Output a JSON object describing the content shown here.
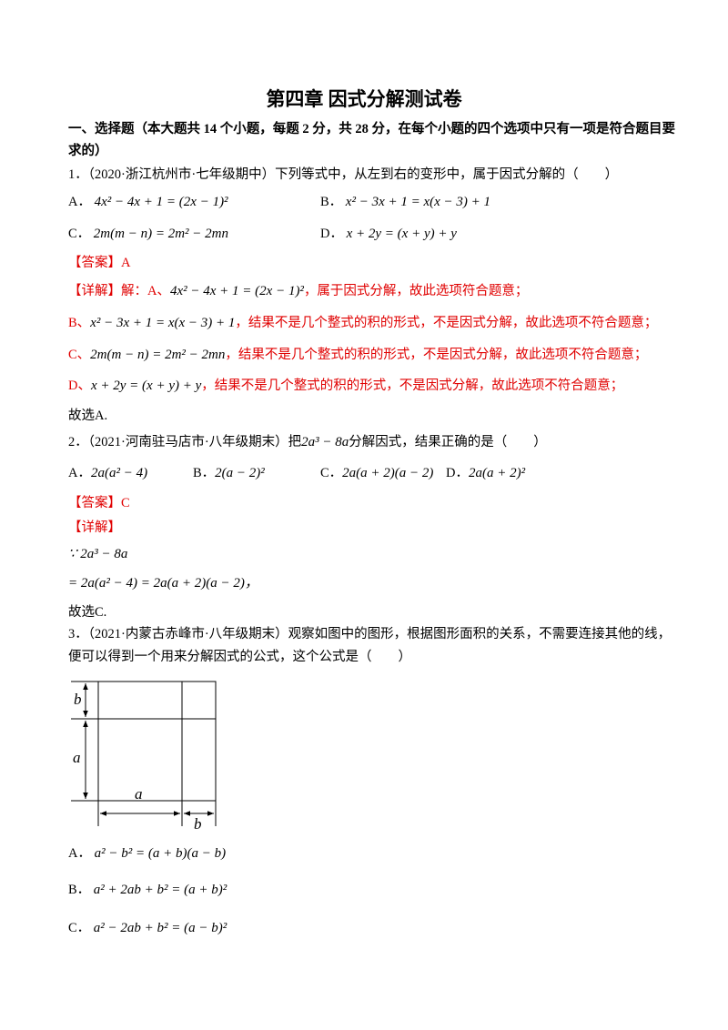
{
  "title": "第四章  因式分解测试卷",
  "section": {
    "line1": "一、选择题（本大题共 14 个小题，每题 2 分，共 28 分，在每个小题的四个选项中只有一项是符合题目要",
    "line2": "求的）"
  },
  "q1": {
    "stem": "1．（2020·浙江杭州市·七年级期中）下列等式中，从左到右的变形中，属于因式分解的（　　）",
    "options": [
      {
        "label": "A．",
        "math": "4x² − 4x + 1 = (2x − 1)²"
      },
      {
        "label": "B．",
        "math": "x² − 3x + 1 = x(x − 3) + 1"
      },
      {
        "label": "C．",
        "math": "2m(m − n) = 2m² − 2mn"
      },
      {
        "label": "D．",
        "math": "x + 2y = (x + y) + y"
      }
    ],
    "answer": "【答案】A",
    "detail": [
      {
        "label": "【详解】解：A、",
        "math": "4x² − 4x + 1 = (2x − 1)²",
        "text": "，属于因式分解，故此选项符合题意；"
      },
      {
        "label": "B、",
        "math": "x² − 3x + 1 = x(x − 3) + 1",
        "text": "，结果不是几个整式的积的形式，不是因式分解，故此选项不符合题意；"
      },
      {
        "label": "C、",
        "math": "2m(m − n) = 2m² − 2mn",
        "text": "，结果不是几个整式的积的形式，不是因式分解，故此选项不符合题意；"
      },
      {
        "label": "D、",
        "math": "x + 2y = (x + y) + y",
        "text": "，结果不是几个整式的积的形式，不是因式分解，故此选项不符合题意；"
      }
    ],
    "conclusion": "故选A."
  },
  "q2": {
    "stem_before": "2．（2021·河南驻马店市·八年级期末）把",
    "stem_math": "2a³ − 8a",
    "stem_after": "分解因式，结果正确的是（　　）",
    "options": [
      {
        "label": "A．",
        "math": "2a(a² − 4)"
      },
      {
        "label": "B．",
        "math": "2(a − 2)²"
      },
      {
        "label": "C．",
        "math": "2a(a + 2)(a − 2)"
      },
      {
        "label": "D．",
        "math": "2a(a + 2)²"
      }
    ],
    "answer": "【答案】C",
    "detail_label": "【详解】",
    "steps": [
      "∵ 2a³ − 8a",
      "= 2a(a² − 4) = 2a(a + 2)(a − 2)，"
    ],
    "conclusion": "故选C."
  },
  "q3": {
    "stem_line1": "3．（2021·内蒙古赤峰市·八年级期末）观察如图中的图形，根据图形面积的关系，不需要连接其他的线，",
    "stem_line2": "便可以得到一个用来分解因式的公式，这个公式是（　　）",
    "figure_labels": [
      "b",
      "a",
      "a",
      "b"
    ],
    "options": [
      {
        "label": "A．",
        "math": "a² − b² = (a + b)(a − b)"
      },
      {
        "label": "B．",
        "math": "a² + 2ab + b² = (a + b)²"
      },
      {
        "label": "C．",
        "math": "a² − 2ab + b² = (a − b)²"
      }
    ]
  }
}
